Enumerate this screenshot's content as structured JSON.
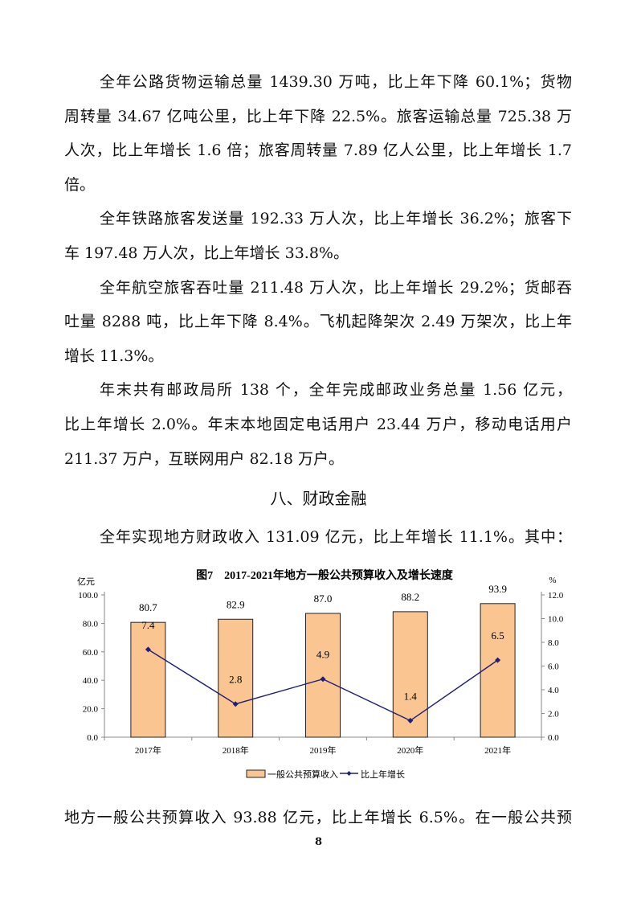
{
  "paragraphs": [
    {
      "lines": [
        "全年公路货物运输总量 1439.30 万吨，比上年下降 60.1%；货物",
        "周转量 34.67 亿吨公里，比上年下降 22.5%。旅客运输总量 725.38 万",
        "人次，比上年增长 1.6 倍；旅客周转量 7.89 亿人公里，比上年增长 1.7",
        "倍。"
      ]
    },
    {
      "lines": [
        "全年铁路旅客发送量 192.33 万人次，比上年增长 36.2%；旅客下",
        "车 197.48 万人次，比上年增长 33.8%。"
      ]
    },
    {
      "lines": [
        "全年航空旅客吞吐量 211.48 万人次，比上年增长 29.2%；货邮吞",
        "吐量 8288 吨，比上年下降 8.4%。飞机起降架次 2.49 万架次，比上年",
        "增长 11.3%。"
      ]
    },
    {
      "lines": [
        "年末共有邮政局所 138 个，全年完成邮政业务总量 1.56 亿元，",
        "比上年增长 2.0%。年末本地固定电话用户 23.44 万户，移动电话用户",
        "211.37 万户，互联网用户 82.18 万户。"
      ]
    }
  ],
  "section_heading": "八、财政金融",
  "intro_line": "全年实现地方财政收入 131.09 亿元，比上年增长 11.1%。其中：",
  "after_chart_line": "地方一般公共预算收入 93.88 亿元，比上年增长 6.5%。在一般公共预",
  "page_number": "8",
  "chart_data": {
    "type": "bar+line",
    "title": "图7　2017-2021年地方一般公共预算收入及增长速度",
    "categories": [
      "2017年",
      "2018年",
      "2019年",
      "2020年",
      "2021年"
    ],
    "y_left": {
      "unit": "亿元",
      "range": [
        0,
        100
      ],
      "ticks": [
        "0.0",
        "20.0",
        "40.0",
        "60.0",
        "80.0",
        "100.0"
      ]
    },
    "y_right": {
      "unit": "%",
      "range": [
        0,
        12
      ],
      "ticks": [
        "0.0",
        "2.0",
        "4.0",
        "6.0",
        "8.0",
        "10.0",
        "12.0"
      ]
    },
    "series": [
      {
        "name": "一般公共预算收入",
        "type": "bar",
        "axis": "left",
        "values": [
          80.7,
          82.9,
          87.0,
          88.2,
          93.9
        ],
        "labels": [
          "80.7",
          "82.9",
          "87.0",
          "88.2",
          "93.9"
        ],
        "color": "#FAC590"
      },
      {
        "name": "比上年增长",
        "type": "line",
        "axis": "right",
        "values": [
          7.4,
          2.8,
          4.9,
          1.4,
          6.5
        ],
        "labels": [
          "7.4",
          "2.8",
          "4.9",
          "1.4",
          "6.5"
        ],
        "color": "#1F1F7A"
      }
    ],
    "legend": "bottom",
    "grid": false
  }
}
